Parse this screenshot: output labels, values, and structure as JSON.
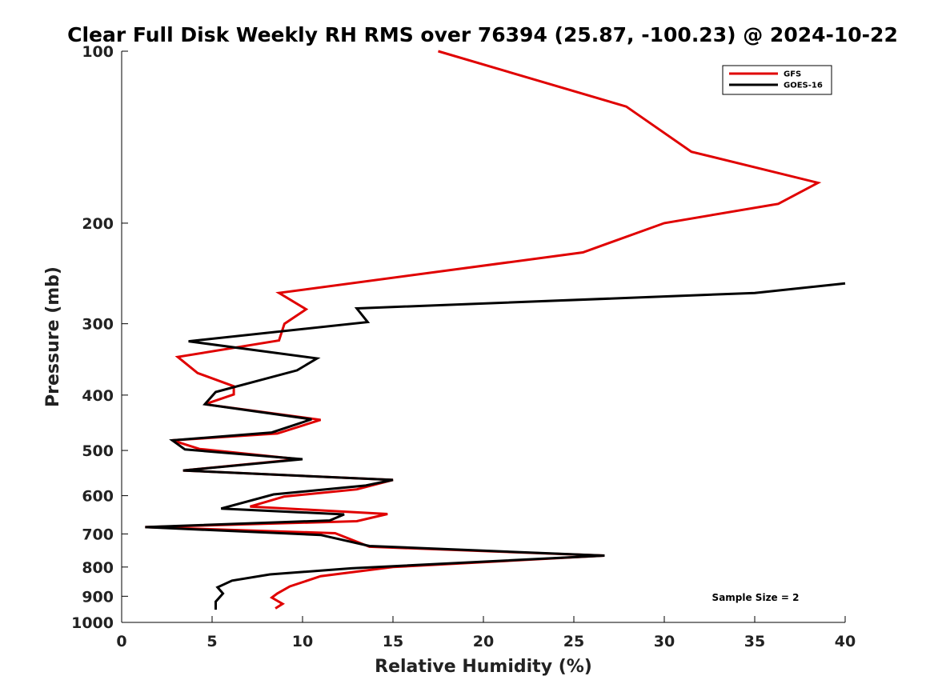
{
  "chart_data": {
    "type": "line",
    "title": "Clear Full Disk Weekly RH RMS over 76394 (25.87, -100.23) @ 2024-10-22",
    "xlabel": "Relative Humidity (%)",
    "ylabel": "Pressure (mb)",
    "xlim": [
      0,
      40
    ],
    "ylim": [
      100,
      1000
    ],
    "y_scale": "log",
    "y_reversed": true,
    "x_ticks": [
      "0",
      "5",
      "10",
      "15",
      "20",
      "25",
      "30",
      "35",
      "40"
    ],
    "y_ticks": [
      "100",
      "200",
      "300",
      "400",
      "500",
      "600",
      "700",
      "800",
      "900",
      "1000"
    ],
    "grid": false,
    "legend_position": "top-right",
    "annotation": "Sample Size = 2",
    "series": [
      {
        "name": "GFS",
        "color": "#e00000",
        "points": [
          [
            17.5,
            100
          ],
          [
            27.9,
            125
          ],
          [
            31.5,
            150
          ],
          [
            38.5,
            170
          ],
          [
            36.3,
            185
          ],
          [
            30.0,
            200
          ],
          [
            25.5,
            225
          ],
          [
            8.7,
            265
          ],
          [
            10.2,
            283
          ],
          [
            9.0,
            300
          ],
          [
            8.7,
            321
          ],
          [
            3.1,
            343
          ],
          [
            4.2,
            366
          ],
          [
            6.2,
            386
          ],
          [
            6.2,
            399
          ],
          [
            4.6,
            415
          ],
          [
            11.0,
            442
          ],
          [
            8.6,
            467
          ],
          [
            2.8,
            480
          ],
          [
            4.3,
            497
          ],
          [
            9.8,
            518
          ],
          [
            3.4,
            542
          ],
          [
            15.0,
            563
          ],
          [
            13.0,
            585
          ],
          [
            9.0,
            602
          ],
          [
            7.1,
            627
          ],
          [
            14.7,
            646
          ],
          [
            13.0,
            665
          ],
          [
            1.3,
            681
          ],
          [
            11.8,
            698
          ],
          [
            13.7,
            737
          ],
          [
            26.7,
            764
          ],
          [
            15.0,
            800
          ],
          [
            11.0,
            830
          ],
          [
            9.3,
            865
          ],
          [
            8.6,
            890
          ],
          [
            8.3,
            905
          ],
          [
            8.9,
            928
          ],
          [
            8.5,
            945
          ]
        ]
      },
      {
        "name": "GOES-16",
        "color": "#000000",
        "points": [
          [
            40.0,
            255
          ],
          [
            35.0,
            265
          ],
          [
            13.0,
            282
          ],
          [
            13.6,
            298
          ],
          [
            3.7,
            322
          ],
          [
            10.8,
            345
          ],
          [
            9.7,
            362
          ],
          [
            5.2,
            395
          ],
          [
            4.6,
            415
          ],
          [
            10.5,
            441
          ],
          [
            8.3,
            465
          ],
          [
            2.8,
            480
          ],
          [
            3.5,
            498
          ],
          [
            10.0,
            518
          ],
          [
            3.4,
            542
          ],
          [
            15.0,
            563
          ],
          [
            13.5,
            576
          ],
          [
            8.4,
            597
          ],
          [
            5.5,
            632
          ],
          [
            12.3,
            647
          ],
          [
            11.5,
            663
          ],
          [
            1.3,
            681
          ],
          [
            11.0,
            703
          ],
          [
            13.7,
            735
          ],
          [
            26.7,
            764
          ],
          [
            12.7,
            804
          ],
          [
            8.2,
            824
          ],
          [
            6.1,
            845
          ],
          [
            5.3,
            868
          ],
          [
            5.6,
            890
          ],
          [
            5.2,
            920
          ],
          [
            5.2,
            950
          ]
        ]
      }
    ]
  }
}
